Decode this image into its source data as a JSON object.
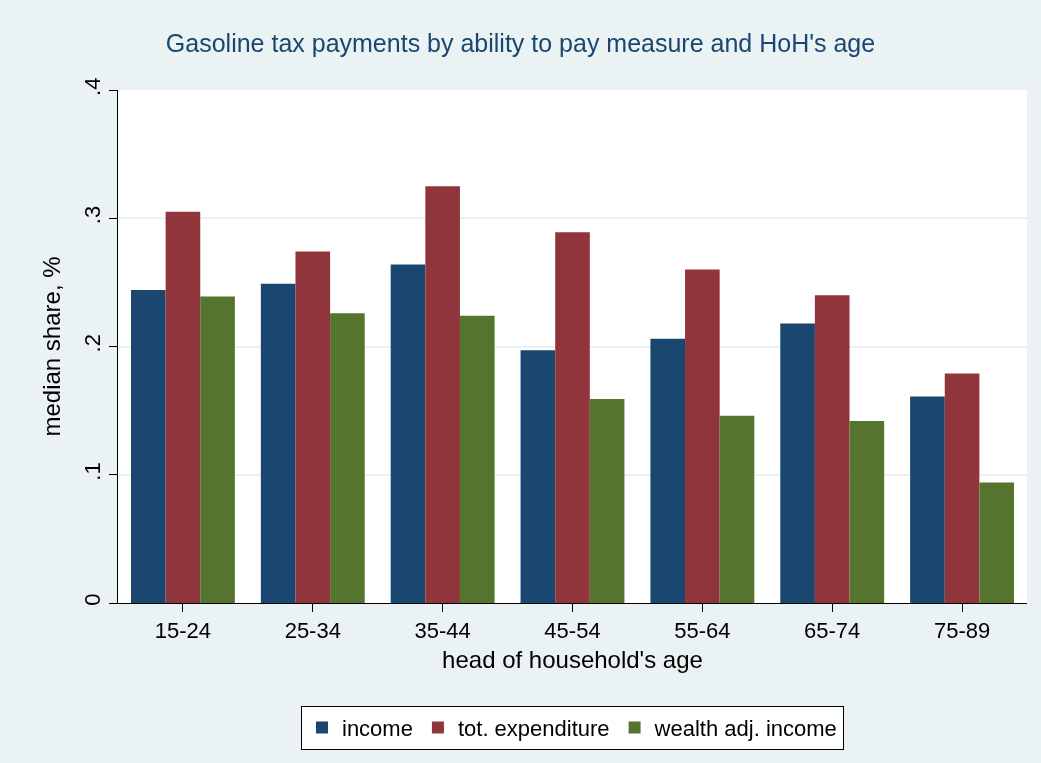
{
  "chart_data": {
    "type": "bar",
    "title": "Gasoline tax payments by ability to pay measure and HoH's age",
    "xlabel": "head of household's age",
    "ylabel": "median share, %",
    "categories": [
      "15-24",
      "25-34",
      "35-44",
      "45-54",
      "55-64",
      "65-74",
      "75-89"
    ],
    "series": [
      {
        "name": "income",
        "color": "#1a476f",
        "values": [
          0.244,
          0.249,
          0.264,
          0.197,
          0.206,
          0.218,
          0.161
        ]
      },
      {
        "name": "tot. expenditure",
        "color": "#90353b",
        "values": [
          0.305,
          0.274,
          0.325,
          0.289,
          0.26,
          0.24,
          0.179
        ]
      },
      {
        "name": "wealth adj. income",
        "color": "#55752f",
        "values": [
          0.239,
          0.226,
          0.224,
          0.159,
          0.146,
          0.142,
          0.094
        ]
      }
    ],
    "ylim": [
      0,
      0.4
    ],
    "yticks": [
      {
        "value": 0,
        "label": "0"
      },
      {
        "value": 0.1,
        "label": ".1"
      },
      {
        "value": 0.2,
        "label": ".2"
      },
      {
        "value": 0.3,
        "label": ".3"
      },
      {
        "value": 0.4,
        "label": ".4"
      }
    ],
    "grid": "y",
    "legend": "bottom"
  }
}
